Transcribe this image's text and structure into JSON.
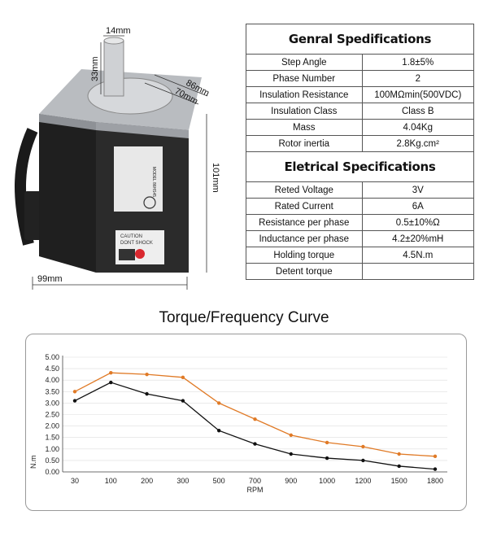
{
  "dimensions": {
    "shaft_dia": "14mm",
    "shaft_len": "33mm",
    "flange": "86mm",
    "bolt": "70mm",
    "height": "101mm",
    "length": "99mm"
  },
  "label": {
    "caution_line1": "CAUTION",
    "caution_line2": "DONT SHOCK",
    "model": "MODEL 86HS45"
  },
  "colors": {
    "upper_curve": "#e07a26",
    "lower_curve": "#111111",
    "grid": "#dddddd"
  },
  "general": {
    "title": "Genral Spedifications",
    "rows": [
      {
        "label": "Step Angle",
        "value": "1.8±5%"
      },
      {
        "label": "Phase Number",
        "value": "2"
      },
      {
        "label": "Insulation Resistance",
        "value": "100MΩmin(500VDC)"
      },
      {
        "label": "Insulation Class",
        "value": "Class B"
      },
      {
        "label": "Mass",
        "value": "4.04Kg"
      },
      {
        "label": "Rotor inertia",
        "value": "2.8Kg.cm²"
      }
    ]
  },
  "electrical": {
    "title": "Eletrical Specifications",
    "rows": [
      {
        "label": "Reted Voltage",
        "value": "3V"
      },
      {
        "label": "Rated Current",
        "value": "6A"
      },
      {
        "label": "Resistance per phase",
        "value": "0.5±10%Ω"
      },
      {
        "label": "Inductance per phase",
        "value": "4.2±20%mH"
      },
      {
        "label": "Holding torque",
        "value": "4.5N.m"
      },
      {
        "label": "Detent torque",
        "value": ""
      }
    ]
  },
  "curve_title": "Torque/Frequency  Curve",
  "chart_data": {
    "type": "line",
    "title": "Torque/Frequency  Curve",
    "xlabel": "RPM",
    "ylabel": "N.m",
    "categories": [
      "30",
      "100",
      "200",
      "300",
      "500",
      "700",
      "900",
      "1000",
      "1200",
      "1500",
      "1800"
    ],
    "ylim": [
      0,
      5
    ],
    "yticks": [
      "0.00",
      "0.50",
      "1.00",
      "1.50",
      "2.00",
      "2.50",
      "3.00",
      "3.50",
      "4.00",
      "4.50",
      "5.00"
    ],
    "grid": true,
    "series": [
      {
        "color": "#e07a26",
        "values": [
          3.5,
          4.32,
          4.25,
          4.12,
          3.0,
          2.3,
          1.6,
          1.28,
          1.1,
          0.78,
          0.68
        ]
      },
      {
        "color": "#111111",
        "values": [
          3.1,
          3.9,
          3.4,
          3.1,
          1.8,
          1.22,
          0.78,
          0.6,
          0.5,
          0.25,
          0.12
        ]
      }
    ]
  }
}
